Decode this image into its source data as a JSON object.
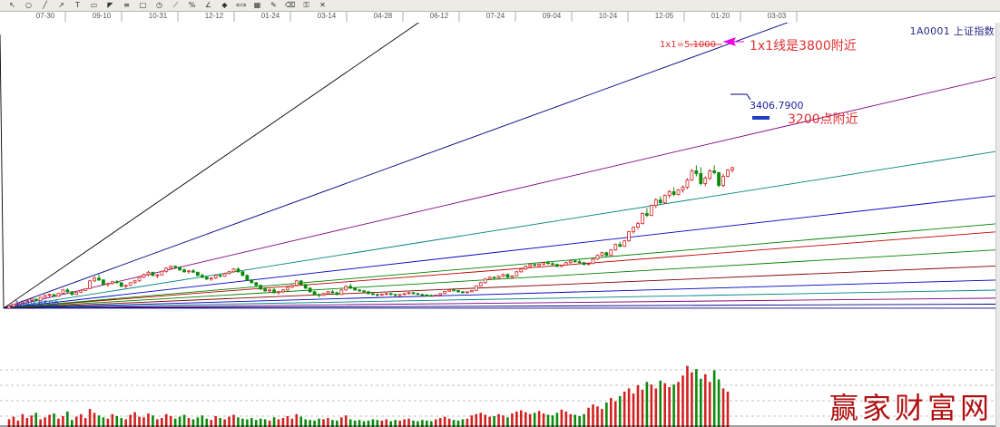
{
  "toolbar": {
    "icons": [
      "pointer-icon",
      "zoom-circle-icon",
      "trendline-icon",
      "arrow-icon",
      "text-icon",
      "channel-icon",
      "gann-fan-icon",
      "fib-icon",
      "rectangle-icon",
      "cycle-icon",
      "speed-line-icon",
      "percent-icon",
      "angle-icon",
      "marker-icon",
      "ruler-icon",
      "grid-icon",
      "brush-icon",
      "eraser-icon",
      "lock-icon",
      "delete-icon"
    ]
  },
  "symbol": {
    "code": "1A0001",
    "name": "上证指数",
    "label": "1A0001  上证指数"
  },
  "watermark": "赢家财富网",
  "colors": {
    "candle_up": "#d42020",
    "candle_down": "#0a8a0a",
    "annotation_red": "#e03030",
    "annotation_magenta": "#ee00ee",
    "annotation_blue": "#2040c0",
    "gann_line_colors": [
      "#000080",
      "#800080",
      "#008080",
      "#0000c0",
      "#008000",
      "#c00000",
      "#008000",
      "#800000",
      "#0000c0",
      "#008080",
      "#800080",
      "#000080",
      "#000000"
    ]
  },
  "chart_data": {
    "type": "candlestick-with-gann-fan",
    "date_ticks": [
      "07-30",
      "09-10",
      "10-31",
      "12-12",
      "01-24",
      "03-14",
      "04-28",
      "06-12",
      "07-24",
      "09-04",
      "10-24",
      "12-05",
      "01-20",
      "03-03"
    ],
    "price_range": [
      1849,
      5000
    ],
    "gann_fan": {
      "origin_label": "1849.6500",
      "one_by_one_label": "1x1=5.1000",
      "slopes_points_per_bar": [
        0.2,
        0.5,
        0.9,
        1.4,
        2.1,
        2.9,
        3.8,
        4.2,
        5.6,
        7.8,
        11.5,
        18.0,
        34.0
      ],
      "color_index": [
        11,
        10,
        9,
        8,
        7,
        6,
        5,
        4,
        3,
        2,
        1,
        0,
        12
      ]
    },
    "price_annotation": "3406.7900",
    "annotations": [
      {
        "text": "1x1线是3800附近",
        "color": "annotation_red"
      },
      {
        "text": "3200点附近",
        "color": "annotation_red"
      }
    ],
    "candles": [
      [
        1850,
        1880,
        1840,
        1870
      ],
      [
        1870,
        1900,
        1860,
        1895
      ],
      [
        1895,
        1915,
        1880,
        1905
      ],
      [
        1905,
        1930,
        1895,
        1920
      ],
      [
        1920,
        1945,
        1910,
        1935
      ],
      [
        1935,
        1960,
        1920,
        1950
      ],
      [
        1950,
        1955,
        1920,
        1930
      ],
      [
        1930,
        1975,
        1925,
        1970
      ],
      [
        1970,
        2000,
        1965,
        1990
      ],
      [
        1990,
        2010,
        1975,
        2000
      ],
      [
        2000,
        2005,
        1970,
        1980
      ],
      [
        1980,
        2020,
        1975,
        2015
      ],
      [
        2015,
        2060,
        2010,
        2050
      ],
      [
        2050,
        2070,
        2020,
        2030
      ],
      [
        2030,
        2040,
        1990,
        2000
      ],
      [
        2000,
        2030,
        1995,
        2025
      ],
      [
        2025,
        2055,
        2015,
        2045
      ],
      [
        2045,
        2070,
        2040,
        2065
      ],
      [
        2065,
        2160,
        2060,
        2150
      ],
      [
        2150,
        2200,
        2140,
        2180
      ],
      [
        2180,
        2220,
        2150,
        2160
      ],
      [
        2160,
        2170,
        2100,
        2110
      ],
      [
        2110,
        2130,
        2085,
        2120
      ],
      [
        2120,
        2150,
        2110,
        2140
      ],
      [
        2140,
        2160,
        2120,
        2130
      ],
      [
        2130,
        2135,
        2080,
        2090
      ],
      [
        2090,
        2110,
        2070,
        2100
      ],
      [
        2100,
        2135,
        2095,
        2130
      ],
      [
        2130,
        2160,
        2120,
        2150
      ],
      [
        2150,
        2200,
        2140,
        2190
      ],
      [
        2190,
        2230,
        2180,
        2220
      ],
      [
        2220,
        2260,
        2200,
        2245
      ],
      [
        2245,
        2250,
        2200,
        2210
      ],
      [
        2210,
        2225,
        2180,
        2215
      ],
      [
        2215,
        2260,
        2210,
        2255
      ],
      [
        2255,
        2300,
        2240,
        2290
      ],
      [
        2290,
        2320,
        2270,
        2310
      ],
      [
        2310,
        2320,
        2280,
        2300
      ],
      [
        2300,
        2310,
        2260,
        2270
      ],
      [
        2270,
        2290,
        2240,
        2250
      ],
      [
        2250,
        2270,
        2230,
        2260
      ],
      [
        2260,
        2280,
        2240,
        2245
      ],
      [
        2245,
        2250,
        2200,
        2210
      ],
      [
        2210,
        2230,
        2180,
        2190
      ],
      [
        2190,
        2200,
        2160,
        2170
      ],
      [
        2170,
        2190,
        2150,
        2180
      ],
      [
        2180,
        2220,
        2170,
        2210
      ],
      [
        2210,
        2230,
        2190,
        2200
      ],
      [
        2200,
        2240,
        2195,
        2230
      ],
      [
        2230,
        2260,
        2220,
        2250
      ],
      [
        2250,
        2290,
        2240,
        2280
      ],
      [
        2280,
        2300,
        2240,
        2250
      ],
      [
        2250,
        2260,
        2200,
        2210
      ],
      [
        2210,
        2220,
        2150,
        2160
      ],
      [
        2160,
        2170,
        2120,
        2130
      ],
      [
        2130,
        2140,
        2090,
        2100
      ],
      [
        2100,
        2110,
        2050,
        2060
      ],
      [
        2060,
        2080,
        2030,
        2040
      ],
      [
        2040,
        2060,
        2020,
        2050
      ],
      [
        2050,
        2070,
        2010,
        2020
      ],
      [
        2020,
        2040,
        2000,
        2030
      ],
      [
        2030,
        2060,
        2020,
        2050
      ],
      [
        2050,
        2090,
        2040,
        2080
      ],
      [
        2080,
        2110,
        2070,
        2100
      ],
      [
        2100,
        2160,
        2090,
        2150
      ],
      [
        2150,
        2160,
        2100,
        2110
      ],
      [
        2110,
        2120,
        2060,
        2070
      ],
      [
        2070,
        2080,
        2020,
        2030
      ],
      [
        2030,
        2040,
        1990,
        2000
      ],
      [
        2000,
        2010,
        1970,
        1990
      ],
      [
        1990,
        2020,
        1985,
        2010
      ],
      [
        2010,
        2040,
        2000,
        2030
      ],
      [
        2030,
        2050,
        2010,
        2020
      ],
      [
        2020,
        2030,
        1990,
        2000
      ],
      [
        2000,
        2060,
        1995,
        2050
      ],
      [
        2050,
        2100,
        2040,
        2090
      ],
      [
        2090,
        2120,
        2060,
        2070
      ],
      [
        2070,
        2080,
        2040,
        2050
      ],
      [
        2050,
        2060,
        2030,
        2040
      ],
      [
        2040,
        2050,
        2020,
        2030
      ],
      [
        2030,
        2040,
        2000,
        2010
      ],
      [
        2010,
        2020,
        1990,
        2000
      ],
      [
        2000,
        2010,
        1980,
        1995
      ],
      [
        1995,
        2010,
        1985,
        2005
      ],
      [
        2005,
        2020,
        1995,
        2010
      ],
      [
        2010,
        2020,
        1990,
        2000
      ],
      [
        2000,
        2010,
        1980,
        1990
      ],
      [
        1990,
        2005,
        1980,
        2000
      ],
      [
        2000,
        2015,
        1990,
        2010
      ],
      [
        2010,
        2030,
        2000,
        2020
      ],
      [
        2020,
        2030,
        2000,
        2010
      ],
      [
        2010,
        2020,
        1995,
        2000
      ],
      [
        2000,
        2010,
        1985,
        1995
      ],
      [
        1995,
        2005,
        1980,
        1990
      ],
      [
        1990,
        2000,
        1975,
        1985
      ],
      [
        1985,
        2000,
        1980,
        1995
      ],
      [
        1995,
        2015,
        1990,
        2010
      ],
      [
        2010,
        2040,
        2005,
        2035
      ],
      [
        2035,
        2060,
        2030,
        2050
      ],
      [
        2050,
        2070,
        2040,
        2045
      ],
      [
        2045,
        2050,
        2020,
        2030
      ],
      [
        2030,
        2040,
        2010,
        2020
      ],
      [
        2020,
        2035,
        2010,
        2030
      ],
      [
        2030,
        2050,
        2025,
        2045
      ],
      [
        2045,
        2100,
        2040,
        2095
      ],
      [
        2095,
        2140,
        2090,
        2130
      ],
      [
        2130,
        2180,
        2120,
        2170
      ],
      [
        2170,
        2200,
        2160,
        2190
      ],
      [
        2190,
        2200,
        2170,
        2180
      ],
      [
        2180,
        2210,
        2175,
        2200
      ],
      [
        2200,
        2230,
        2190,
        2220
      ],
      [
        2220,
        2230,
        2180,
        2190
      ],
      [
        2190,
        2210,
        2180,
        2205
      ],
      [
        2205,
        2260,
        2200,
        2250
      ],
      [
        2250,
        2290,
        2240,
        2280
      ],
      [
        2280,
        2320,
        2270,
        2310
      ],
      [
        2310,
        2340,
        2300,
        2330
      ],
      [
        2330,
        2350,
        2310,
        2320
      ],
      [
        2320,
        2340,
        2310,
        2335
      ],
      [
        2335,
        2360,
        2320,
        2350
      ],
      [
        2350,
        2370,
        2330,
        2340
      ],
      [
        2340,
        2355,
        2320,
        2330
      ],
      [
        2330,
        2340,
        2300,
        2310
      ],
      [
        2310,
        2330,
        2300,
        2325
      ],
      [
        2325,
        2360,
        2320,
        2350
      ],
      [
        2350,
        2380,
        2340,
        2370
      ],
      [
        2370,
        2390,
        2350,
        2360
      ],
      [
        2360,
        2380,
        2340,
        2350
      ],
      [
        2350,
        2360,
        2320,
        2330
      ],
      [
        2330,
        2350,
        2320,
        2340
      ],
      [
        2340,
        2400,
        2335,
        2390
      ],
      [
        2390,
        2440,
        2380,
        2430
      ],
      [
        2430,
        2470,
        2420,
        2460
      ],
      [
        2460,
        2470,
        2420,
        2430
      ],
      [
        2430,
        2500,
        2425,
        2490
      ],
      [
        2490,
        2560,
        2480,
        2550
      ],
      [
        2550,
        2580,
        2520,
        2530
      ],
      [
        2530,
        2600,
        2525,
        2590
      ],
      [
        2590,
        2700,
        2580,
        2690
      ],
      [
        2690,
        2750,
        2670,
        2740
      ],
      [
        2740,
        2800,
        2720,
        2780
      ],
      [
        2780,
        2900,
        2770,
        2890
      ],
      [
        2890,
        2950,
        2850,
        2870
      ],
      [
        2870,
        2990,
        2860,
        2980
      ],
      [
        2980,
        3060,
        2950,
        3040
      ],
      [
        3040,
        3080,
        2990,
        3010
      ],
      [
        3010,
        3100,
        3000,
        3090
      ],
      [
        3090,
        3150,
        3060,
        3130
      ],
      [
        3130,
        3180,
        3080,
        3100
      ],
      [
        3100,
        3160,
        3090,
        3150
      ],
      [
        3150,
        3200,
        3120,
        3180
      ],
      [
        3180,
        3280,
        3160,
        3260
      ],
      [
        3260,
        3380,
        3250,
        3360
      ],
      [
        3360,
        3420,
        3300,
        3330
      ],
      [
        3330,
        3400,
        3200,
        3220
      ],
      [
        3220,
        3300,
        3190,
        3280
      ],
      [
        3280,
        3380,
        3260,
        3360
      ],
      [
        3360,
        3420,
        3320,
        3340
      ],
      [
        3340,
        3350,
        3180,
        3200
      ],
      [
        3200,
        3330,
        3180,
        3300
      ],
      [
        3300,
        3380,
        3290,
        3370
      ],
      [
        3370,
        3405,
        3340,
        3395
      ]
    ],
    "volumes": [
      0.12,
      0.16,
      0.1,
      0.2,
      0.14,
      0.18,
      0.22,
      0.12,
      0.15,
      0.19,
      0.21,
      0.13,
      0.17,
      0.24,
      0.11,
      0.16,
      0.2,
      0.14,
      0.28,
      0.22,
      0.18,
      0.15,
      0.13,
      0.2,
      0.17,
      0.14,
      0.12,
      0.19,
      0.23,
      0.16,
      0.15,
      0.21,
      0.18,
      0.12,
      0.14,
      0.2,
      0.17,
      0.13,
      0.16,
      0.19,
      0.14,
      0.12,
      0.15,
      0.18,
      0.13,
      0.11,
      0.17,
      0.14,
      0.12,
      0.16,
      0.19,
      0.15,
      0.13,
      0.12,
      0.14,
      0.11,
      0.13,
      0.12,
      0.1,
      0.15,
      0.12,
      0.14,
      0.17,
      0.13,
      0.2,
      0.16,
      0.12,
      0.11,
      0.1,
      0.13,
      0.12,
      0.14,
      0.11,
      0.1,
      0.15,
      0.18,
      0.12,
      0.1,
      0.11,
      0.09,
      0.1,
      0.12,
      0.11,
      0.1,
      0.12,
      0.09,
      0.11,
      0.1,
      0.12,
      0.13,
      0.1,
      0.09,
      0.11,
      0.1,
      0.09,
      0.12,
      0.14,
      0.16,
      0.13,
      0.11,
      0.1,
      0.12,
      0.13,
      0.18,
      0.2,
      0.22,
      0.19,
      0.16,
      0.17,
      0.2,
      0.18,
      0.15,
      0.21,
      0.24,
      0.26,
      0.23,
      0.2,
      0.22,
      0.25,
      0.21,
      0.19,
      0.18,
      0.22,
      0.27,
      0.24,
      0.2,
      0.19,
      0.17,
      0.2,
      0.3,
      0.35,
      0.32,
      0.28,
      0.38,
      0.45,
      0.4,
      0.48,
      0.55,
      0.6,
      0.52,
      0.65,
      0.58,
      0.7,
      0.66,
      0.6,
      0.72,
      0.68,
      0.62,
      0.66,
      0.7,
      0.8,
      0.95,
      0.85,
      0.9,
      0.75,
      0.82,
      0.7,
      0.88,
      0.74,
      0.6,
      0.55
    ]
  }
}
